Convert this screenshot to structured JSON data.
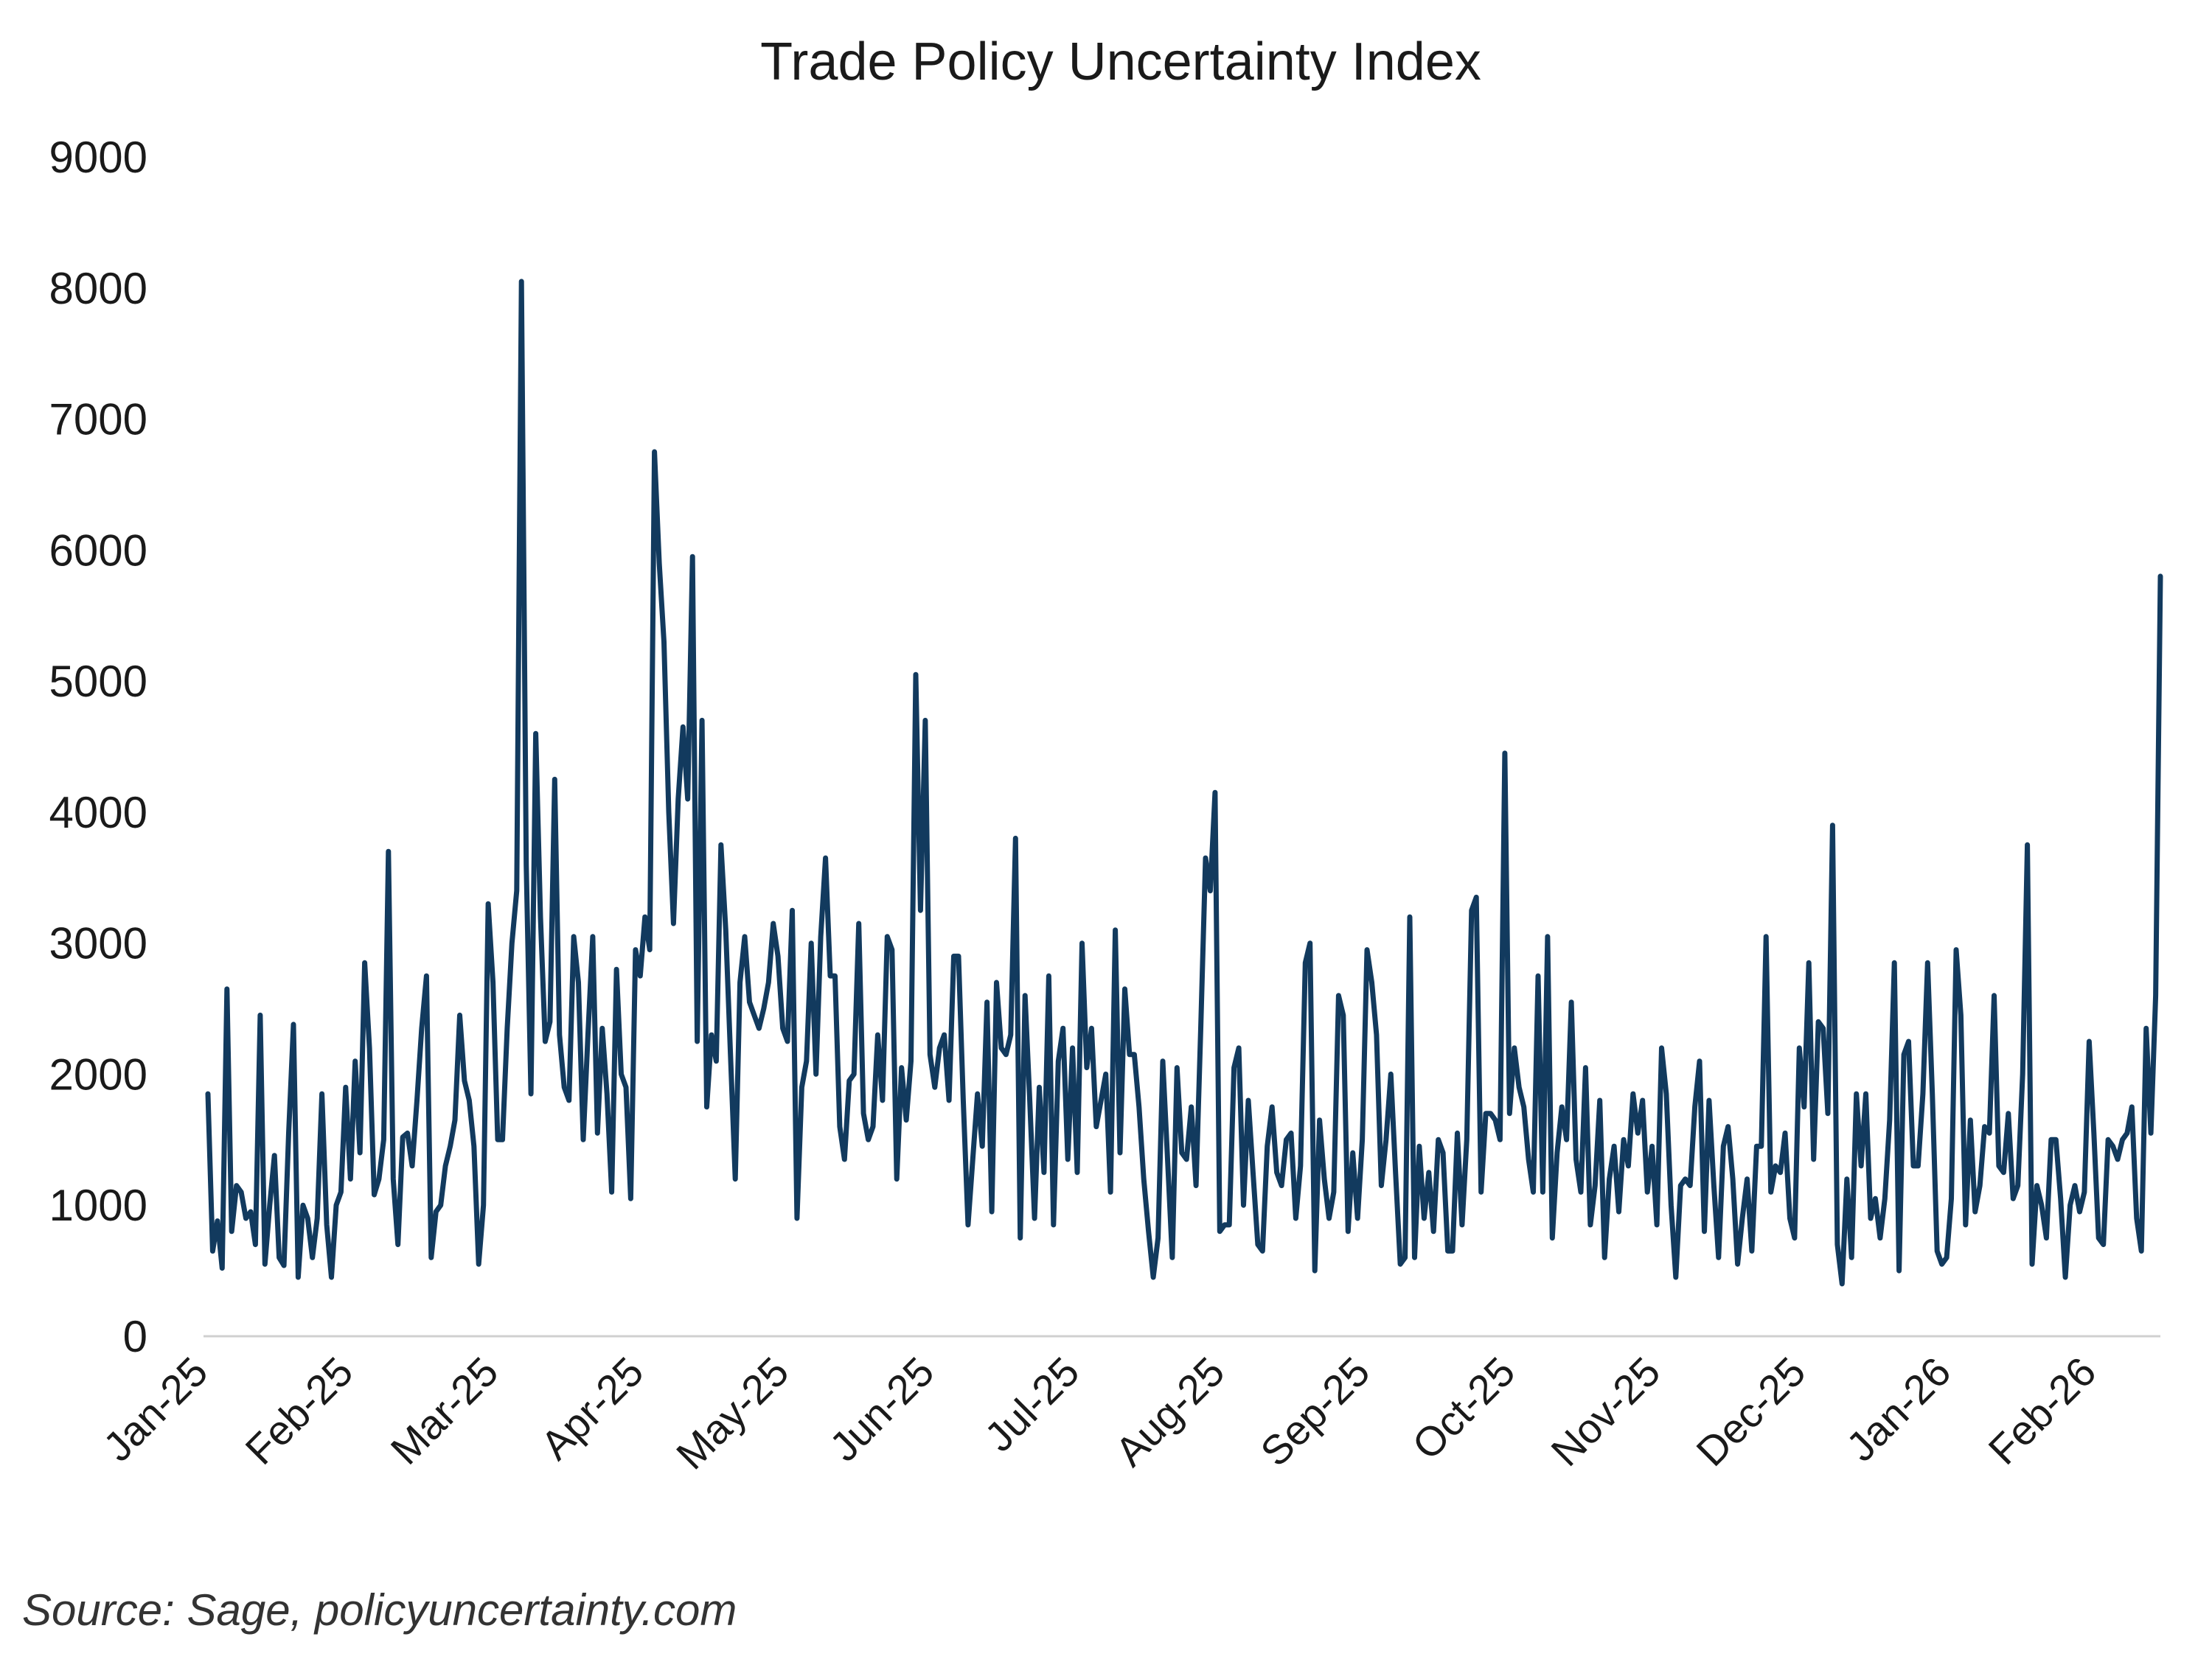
{
  "chart_data": {
    "type": "line",
    "title": "Trade Policy Uncertainty Index",
    "xlabel": "",
    "ylabel": "",
    "ylim": [
      0,
      9000
    ],
    "y_ticks": [
      "0",
      "1000",
      "2000",
      "3000",
      "4000",
      "5000",
      "6000",
      "7000",
      "8000",
      "9000"
    ],
    "x_tick_labels": [
      "Jan-25",
      "Feb-25",
      "Mar-25",
      "Apr-25",
      "May-25",
      "Jun-25",
      "Jul-25",
      "Aug-25",
      "Sep-25",
      "Oct-25",
      "Nov-25",
      "Dec-25",
      "Jan-26",
      "Feb-26"
    ],
    "grid": false,
    "line_color": "#123a5e",
    "series": [
      {
        "name": "Trade Policy Uncertainty Index",
        "x_start": "2025-01-01",
        "x_end": "2026-02-28",
        "values": [
          1850,
          650,
          880,
          520,
          2650,
          800,
          1150,
          1100,
          900,
          950,
          700,
          2450,
          550,
          1000,
          1380,
          600,
          540,
          1550,
          2380,
          450,
          1000,
          900,
          600,
          900,
          1850,
          850,
          450,
          1000,
          1100,
          1900,
          1200,
          2100,
          1400,
          2850,
          2200,
          1080,
          1200,
          1500,
          3700,
          1200,
          700,
          1520,
          1550,
          1300,
          1800,
          2350,
          2750,
          600,
          950,
          1000,
          1300,
          1450,
          1650,
          2450,
          1950,
          1800,
          1450,
          550,
          1000,
          3300,
          2700,
          1500,
          1500,
          2350,
          3000,
          3400,
          8050,
          3600,
          1850,
          4600,
          3200,
          2250,
          2400,
          4250,
          2300,
          1900,
          1800,
          3050,
          2700,
          1500,
          2300,
          3050,
          1550,
          2350,
          1850,
          1100,
          2800,
          2000,
          1900,
          1050,
          2950,
          2750,
          3200,
          2950,
          6750,
          5900,
          5300,
          4000,
          3150,
          4100,
          4650,
          4100,
          5950,
          2250,
          4700,
          1750,
          2300,
          2100,
          3750,
          3100,
          2150,
          1200,
          2700,
          3050,
          2550,
          2450,
          2350,
          2500,
          2700,
          3150,
          2900,
          2350,
          2250,
          3250,
          900,
          1900,
          2100,
          3000,
          2000,
          3050,
          3650,
          2750,
          2750,
          1600,
          1350,
          1950,
          2000,
          3150,
          1700,
          1500,
          1600,
          2300,
          1800,
          3050,
          2950,
          1200,
          2050,
          1650,
          2100,
          5050,
          3250,
          4700,
          2150,
          1900,
          2200,
          2300,
          1800,
          2900,
          2900,
          1800,
          850,
          1350,
          1850,
          1450,
          2550,
          950,
          2700,
          2200,
          2150,
          2300,
          3800,
          750,
          2600,
          1800,
          900,
          1900,
          1250,
          2750,
          850,
          2100,
          2350,
          1350,
          2200,
          1250,
          3000,
          2050,
          2350,
          1600,
          1800,
          2000,
          1100,
          3100,
          1400,
          2650,
          2150,
          2150,
          1750,
          1200,
          800,
          450,
          750,
          2100,
          1350,
          600,
          2050,
          1400,
          1350,
          1750,
          1150,
          2350,
          3650,
          3400,
          4150,
          800,
          850,
          850,
          2050,
          2200,
          1000,
          1800,
          1250,
          700,
          650,
          1450,
          1750,
          1250,
          1150,
          1500,
          1550,
          900,
          1300,
          2850,
          3000,
          500,
          1650,
          1200,
          900,
          1100,
          2600,
          2450,
          800,
          1400,
          900,
          1500,
          2950,
          2700,
          2300,
          1150,
          1500,
          2000,
          1250,
          550,
          600,
          3200,
          600,
          1450,
          900,
          1250,
          800,
          1500,
          1400,
          650,
          650,
          1550,
          850,
          1500,
          3250,
          3350,
          1100,
          1700,
          1700,
          1650,
          1500,
          4450,
          1700,
          2200,
          1900,
          1750,
          1350,
          1100,
          2750,
          1100,
          3050,
          750,
          1400,
          1750,
          1500,
          2550,
          1350,
          1100,
          2050,
          850,
          1150,
          1800,
          600,
          1200,
          1450,
          950,
          1500,
          1300,
          1850,
          1550,
          1800,
          1100,
          1450,
          850,
          2200,
          1850,
          1000,
          450,
          1150,
          1200,
          1150,
          1750,
          2100,
          800,
          1800,
          1150,
          600,
          1450,
          1600,
          1200,
          550,
          900,
          1200,
          650,
          1450,
          1450,
          3050,
          1100,
          1300,
          1250,
          1550,
          900,
          750,
          2200,
          1750,
          2850,
          1350,
          2400,
          2350,
          1700,
          3900,
          700,
          400,
          1200,
          600,
          1850,
          1300,
          1850,
          900,
          1050,
          750,
          1050,
          1650,
          2850,
          500,
          2150,
          2250,
          1300,
          1300,
          1850,
          2850,
          1850,
          650,
          550,
          600,
          1050,
          2950,
          2450,
          850,
          1650,
          950,
          1150,
          1600,
          1550,
          2600,
          1300,
          1250,
          1700,
          1050,
          1150,
          2000,
          3750,
          550,
          1150,
          1000,
          750,
          1500,
          1500,
          1050,
          450,
          1000,
          1150,
          950,
          1100,
          2250,
          1550,
          750,
          700,
          1500,
          1450,
          1350,
          1500,
          1550,
          1750,
          900,
          650,
          2350,
          1550,
          2600,
          5800
        ]
      }
    ]
  },
  "source_note": "Source: Sage, policyuncertainty.com"
}
